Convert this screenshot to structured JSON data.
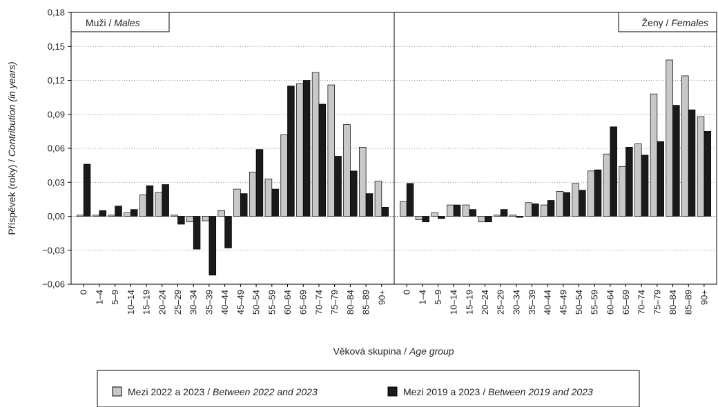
{
  "chart_data": {
    "type": "bar",
    "xlabel": {
      "main": "Věková skupina / ",
      "italic": "Age group"
    },
    "ylabel": {
      "main": "Příspěvek (roky) / ",
      "italic": "Contribution (in years)"
    },
    "ylim": [
      -0.06,
      0.18
    ],
    "yticks": [
      -0.06,
      -0.03,
      0.0,
      0.03,
      0.06,
      0.09,
      0.12,
      0.15,
      0.18
    ],
    "ytick_labels": [
      "−0,06",
      "−0,03",
      "0,00",
      "0,03",
      "0,06",
      "0,09",
      "0,12",
      "0,15",
      "0,18"
    ],
    "grid": "horizontal dotted",
    "legend_position": "bottom",
    "categories": [
      "0",
      "1–4",
      "5–9",
      "10–14",
      "15–19",
      "20–24",
      "25–29",
      "30–34",
      "35–39",
      "40–44",
      "45–49",
      "50–54",
      "55–59",
      "60–64",
      "65–69",
      "70–74",
      "75–79",
      "80–84",
      "85–89",
      "90+"
    ],
    "series_legend": [
      {
        "main": "Mezi 2022 a 2023 / ",
        "italic": "Between 2022 and 2023",
        "color": "#c8c8c8"
      },
      {
        "main": "Mezi 2019 a 2023 / ",
        "italic": "Between 2019 and 2023",
        "color": "#1a1a1a"
      }
    ],
    "panels": [
      {
        "label_main": "Muži / ",
        "label_italic": "Males",
        "series": [
          {
            "values": [
              0.001,
              0.001,
              0.001,
              0.003,
              0.019,
              0.021,
              0.001,
              -0.005,
              -0.004,
              0.005,
              0.024,
              0.039,
              0.033,
              0.072,
              0.117,
              0.127,
              0.116,
              0.081,
              0.061,
              0.031
            ]
          },
          {
            "values": [
              0.046,
              0.005,
              0.009,
              0.006,
              0.027,
              0.028,
              -0.007,
              -0.029,
              -0.052,
              -0.028,
              0.02,
              0.059,
              0.024,
              0.115,
              0.12,
              0.099,
              0.053,
              0.04,
              0.02,
              0.008
            ]
          }
        ]
      },
      {
        "label_main": "Ženy / ",
        "label_italic": "Females",
        "series": [
          {
            "values": [
              0.013,
              -0.003,
              0.003,
              0.01,
              0.01,
              -0.005,
              0.001,
              0.001,
              0.012,
              0.01,
              0.022,
              0.029,
              0.04,
              0.055,
              0.044,
              0.064,
              0.108,
              0.138,
              0.124,
              0.088
            ]
          },
          {
            "values": [
              0.029,
              -0.005,
              -0.002,
              0.01,
              0.006,
              -0.005,
              0.006,
              -0.001,
              0.011,
              0.014,
              0.021,
              0.023,
              0.041,
              0.079,
              0.061,
              0.054,
              0.066,
              0.098,
              0.094,
              0.075
            ]
          }
        ]
      }
    ]
  }
}
